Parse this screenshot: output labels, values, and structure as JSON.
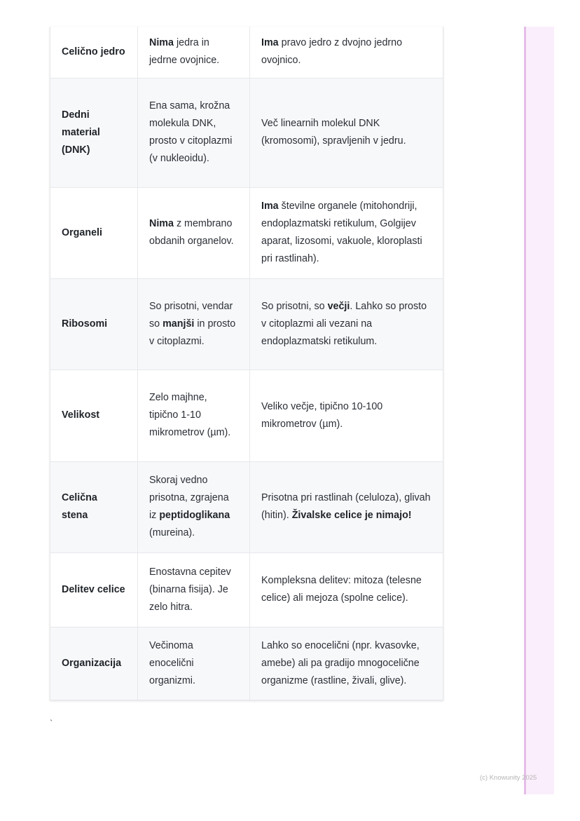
{
  "table": {
    "rows": [
      {
        "label": "Celično jedro",
        "h": 73,
        "alt": false,
        "prok": [
          {
            "t": "Nima",
            "b": true
          },
          {
            "t": " jedra in jedrne ovojnice."
          }
        ],
        "euk": [
          {
            "t": "Ima",
            "b": true
          },
          {
            "t": " pravo jedro z dvojno jedrno ovojnico."
          }
        ]
      },
      {
        "label": "Dedni material (DNK)",
        "h": 156,
        "alt": true,
        "prok": [
          {
            "t": "Ena sama, krožna molekula DNK, prosto v citoplazmi (v nukleoidu)."
          }
        ],
        "euk": [
          {
            "t": "Več linearnih molekul DNK (kromosomi), spravljenih v jedru."
          }
        ]
      },
      {
        "label": "Organeli",
        "h": 130,
        "alt": false,
        "prok": [
          {
            "t": "Nima",
            "b": true
          },
          {
            "t": " z membrano obdanih organelov."
          }
        ],
        "euk": [
          {
            "t": "Ima",
            "b": true
          },
          {
            "t": " številne organele (mitohondriji, endoplazmatski retikulum, Golgijev aparat, lizosomi, vakuole, kloroplasti pri rastlinah)."
          }
        ]
      },
      {
        "label": "Ribosomi",
        "h": 130,
        "alt": true,
        "prok": [
          {
            "t": "So prisotni, vendar so "
          },
          {
            "t": "manjši",
            "b": true
          },
          {
            "t": " in prosto v citoplazmi."
          }
        ],
        "euk": [
          {
            "t": "So prisotni, so "
          },
          {
            "t": "večji",
            "b": true
          },
          {
            "t": ". Lahko so prosto v citoplazmi ali vezani na endoplazmatski retikulum."
          }
        ]
      },
      {
        "label": "Velikost",
        "h": 131,
        "alt": false,
        "prok": [
          {
            "t": "Zelo majhne, tipično 1-10 mikrometrov (µm)."
          }
        ],
        "euk": [
          {
            "t": "Veliko večje, tipično 10-100 mikrometrov (µm)."
          }
        ]
      },
      {
        "label": "Celična stena",
        "h": 130,
        "alt": true,
        "prok": [
          {
            "t": "Skoraj vedno prisotna, zgrajena iz "
          },
          {
            "t": "peptidoglikana",
            "b": true
          },
          {
            "t": " (mureina)."
          }
        ],
        "euk": [
          {
            "t": "Prisotna pri rastlinah (celuloza), glivah (hitin). "
          },
          {
            "t": "Živalske celice je nimajo!",
            "b": true
          }
        ]
      },
      {
        "label": "Delitev celice",
        "h": 106,
        "alt": false,
        "prok": [
          {
            "t": "Enostavna cepitev (binarna fisija). Je zelo hitra."
          }
        ],
        "euk": [
          {
            "t": "Kompleksna delitev: mitoza (telesne celice) ali mejoza (spolne celice)."
          }
        ]
      },
      {
        "label": "Organizacija",
        "h": 104,
        "alt": true,
        "prok": [
          {
            "t": "Večinoma enocelični organizmi."
          }
        ],
        "euk": [
          {
            "t": "Lahko so enocelični (npr. kvasovke, amebe) ali pa gradijo mnogocelične organizme (rastline, živali, glive)."
          }
        ]
      }
    ]
  },
  "stray_mark": "`",
  "footer": "(c) Knowunity 2025",
  "colors": {
    "accent_bar": "#fbeefc",
    "accent_line": "#e6bde9",
    "alt_row": "#f7f8fa"
  }
}
